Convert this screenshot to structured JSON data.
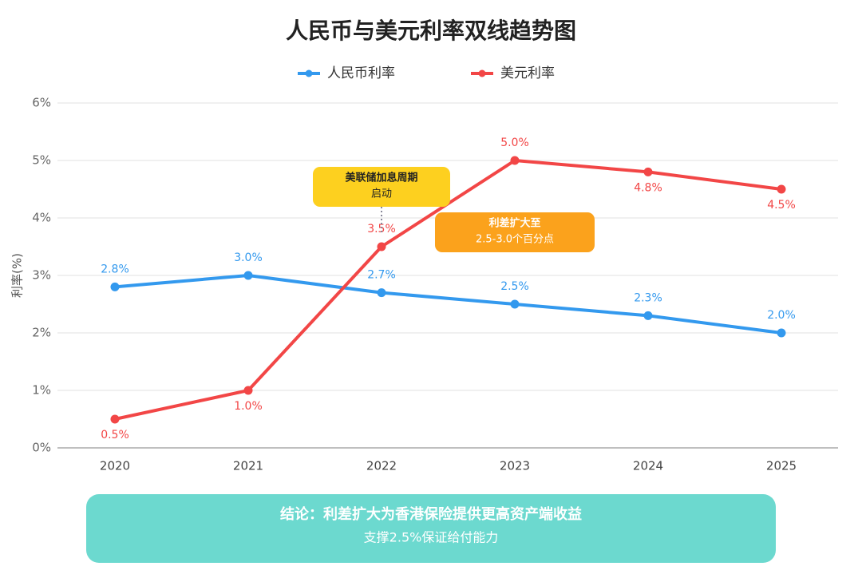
{
  "chart_data": {
    "type": "line",
    "title": "人民币与美元利率双线趋势图",
    "y_label": "利率(%)",
    "categories": [
      "2020",
      "2021",
      "2022",
      "2023",
      "2024",
      "2025"
    ],
    "series": [
      {
        "name": "人民币利率",
        "color": "#3399ee",
        "values": [
          2.8,
          3.0,
          2.7,
          2.5,
          2.3,
          2.0
        ],
        "value_labels": [
          "2.8%",
          "3.0%",
          "2.7%",
          "2.5%",
          "2.3%",
          "2.0%"
        ]
      },
      {
        "name": "美元利率",
        "color": "#f24646",
        "values": [
          0.5,
          1.0,
          3.5,
          5.0,
          4.8,
          4.5
        ],
        "value_labels": [
          "0.5%",
          "1.0%",
          "3.5%",
          "5.0%",
          "4.8%",
          "4.5%"
        ]
      }
    ],
    "ylim": [
      0,
      6
    ],
    "yticks": [
      {
        "value": 0,
        "label": "0%"
      },
      {
        "value": 1,
        "label": "1%"
      },
      {
        "value": 2,
        "label": "2%"
      },
      {
        "value": 3,
        "label": "3%"
      },
      {
        "value": 4,
        "label": "4%"
      },
      {
        "value": 5,
        "label": "5%"
      },
      {
        "value": 6,
        "label": "6%"
      }
    ],
    "grid": true,
    "legend": "top",
    "annotations": [
      {
        "lines": [
          "美联储加息周期",
          "启动"
        ],
        "color": "#fdd01f"
      },
      {
        "lines": [
          "利差扩大至",
          "2.5-3.0个百分点"
        ],
        "color": "#fba21c"
      }
    ]
  },
  "conclusion": {
    "title": "结论：利差扩大为香港保险提供更高资产端收益",
    "subtitle": "支撑2.5%保证给付能力"
  }
}
